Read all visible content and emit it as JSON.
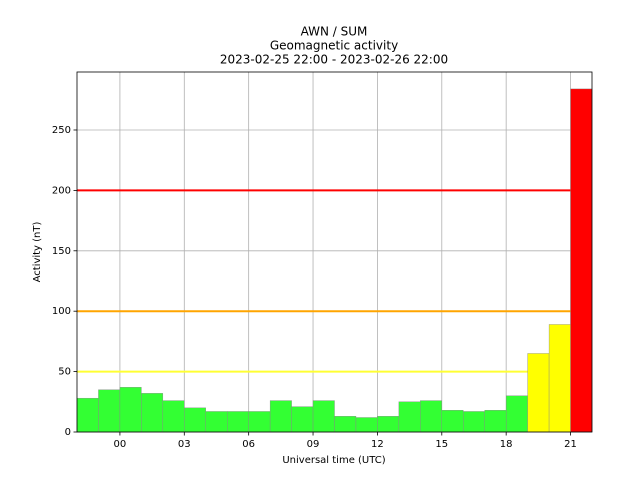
{
  "chart_data": {
    "type": "bar",
    "title": [
      "AWN / SUM",
      "Geomagnetic activity",
      "2023-02-25 22:00 - 2023-02-26 22:00"
    ],
    "xlabel": "Universal time (UTC)",
    "ylabel": "Activity (nT)",
    "x": [
      0,
      1,
      2,
      3,
      4,
      5,
      6,
      7,
      8,
      9,
      10,
      11,
      12,
      13,
      14,
      15,
      16,
      17,
      18,
      19,
      20,
      21,
      22,
      23
    ],
    "values": [
      28,
      35,
      37,
      32,
      26,
      20,
      17,
      17,
      17,
      26,
      21,
      26,
      13,
      12,
      13,
      25,
      26,
      18,
      17,
      18,
      30,
      65,
      89,
      284
    ],
    "colors": [
      "#33ff33",
      "#33ff33",
      "#33ff33",
      "#33ff33",
      "#33ff33",
      "#33ff33",
      "#33ff33",
      "#33ff33",
      "#33ff33",
      "#33ff33",
      "#33ff33",
      "#33ff33",
      "#33ff33",
      "#33ff33",
      "#33ff33",
      "#33ff33",
      "#33ff33",
      "#33ff33",
      "#33ff33",
      "#33ff33",
      "#33ff33",
      "#ffff00",
      "#ffff00",
      "#ff0000"
    ],
    "xlim": [
      0,
      24
    ],
    "xticks": [
      {
        "value": 2,
        "label": "00"
      },
      {
        "value": 5,
        "label": "03"
      },
      {
        "value": 8,
        "label": "06"
      },
      {
        "value": 11,
        "label": "09"
      },
      {
        "value": 14,
        "label": "12"
      },
      {
        "value": 17,
        "label": "15"
      },
      {
        "value": 20,
        "label": "18"
      },
      {
        "value": 23,
        "label": "21"
      }
    ],
    "ylim": [
      0,
      298
    ],
    "yticks": [
      0,
      50,
      100,
      150,
      200,
      250
    ],
    "thresholds": [
      {
        "value": 50,
        "color": "#ffff33"
      },
      {
        "value": 100,
        "color": "#ffa500"
      },
      {
        "value": 200,
        "color": "#ff0000"
      }
    ],
    "grid": true
  }
}
